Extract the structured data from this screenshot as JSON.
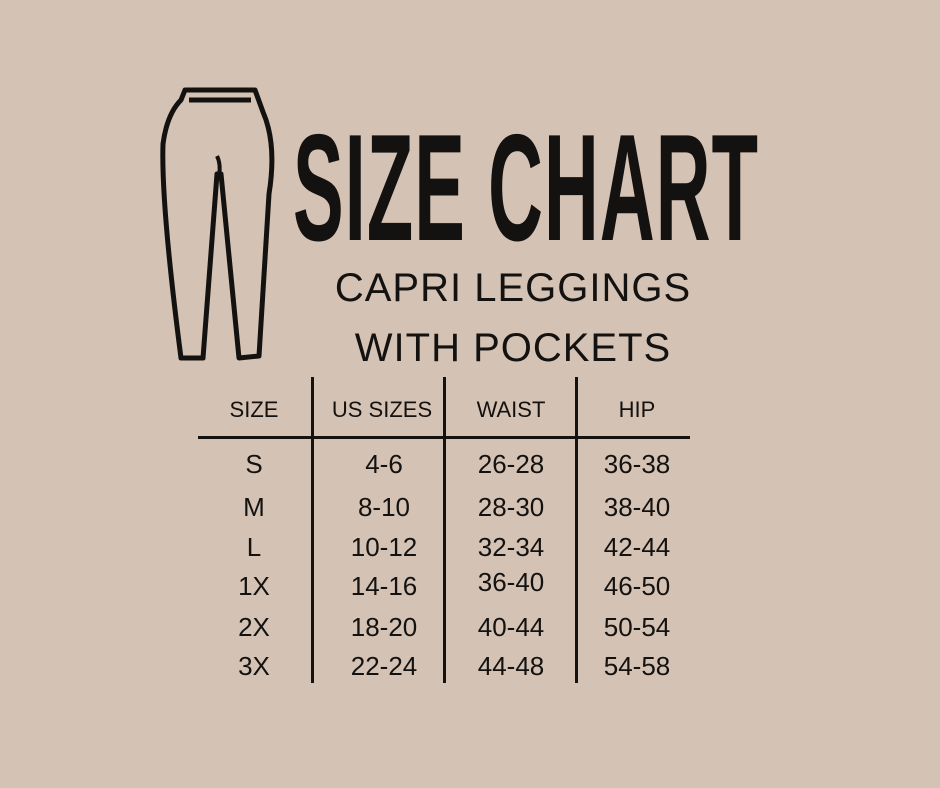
{
  "title": "SIZE CHART",
  "subtitle_line1": "CAPRI LEGGINGS",
  "subtitle_line2": "WITH POCKETS",
  "icon": "leggings-icon",
  "colors": {
    "background": "#d4c2b4",
    "text": "#141210"
  },
  "table": {
    "headers": [
      "SIZE",
      "US SIZES",
      "WAIST",
      "HIP"
    ],
    "rows": [
      [
        "S",
        "4-6",
        "26-28",
        "36-38"
      ],
      [
        "M",
        "8-10",
        "28-30",
        "38-40"
      ],
      [
        "L",
        "10-12",
        "32-34",
        "42-44"
      ],
      [
        "1X",
        "14-16",
        "36-40",
        "46-50"
      ],
      [
        "2X",
        "18-20",
        "40-44",
        "50-54"
      ],
      [
        "3X",
        "22-24",
        "44-48",
        "54-58"
      ]
    ]
  }
}
